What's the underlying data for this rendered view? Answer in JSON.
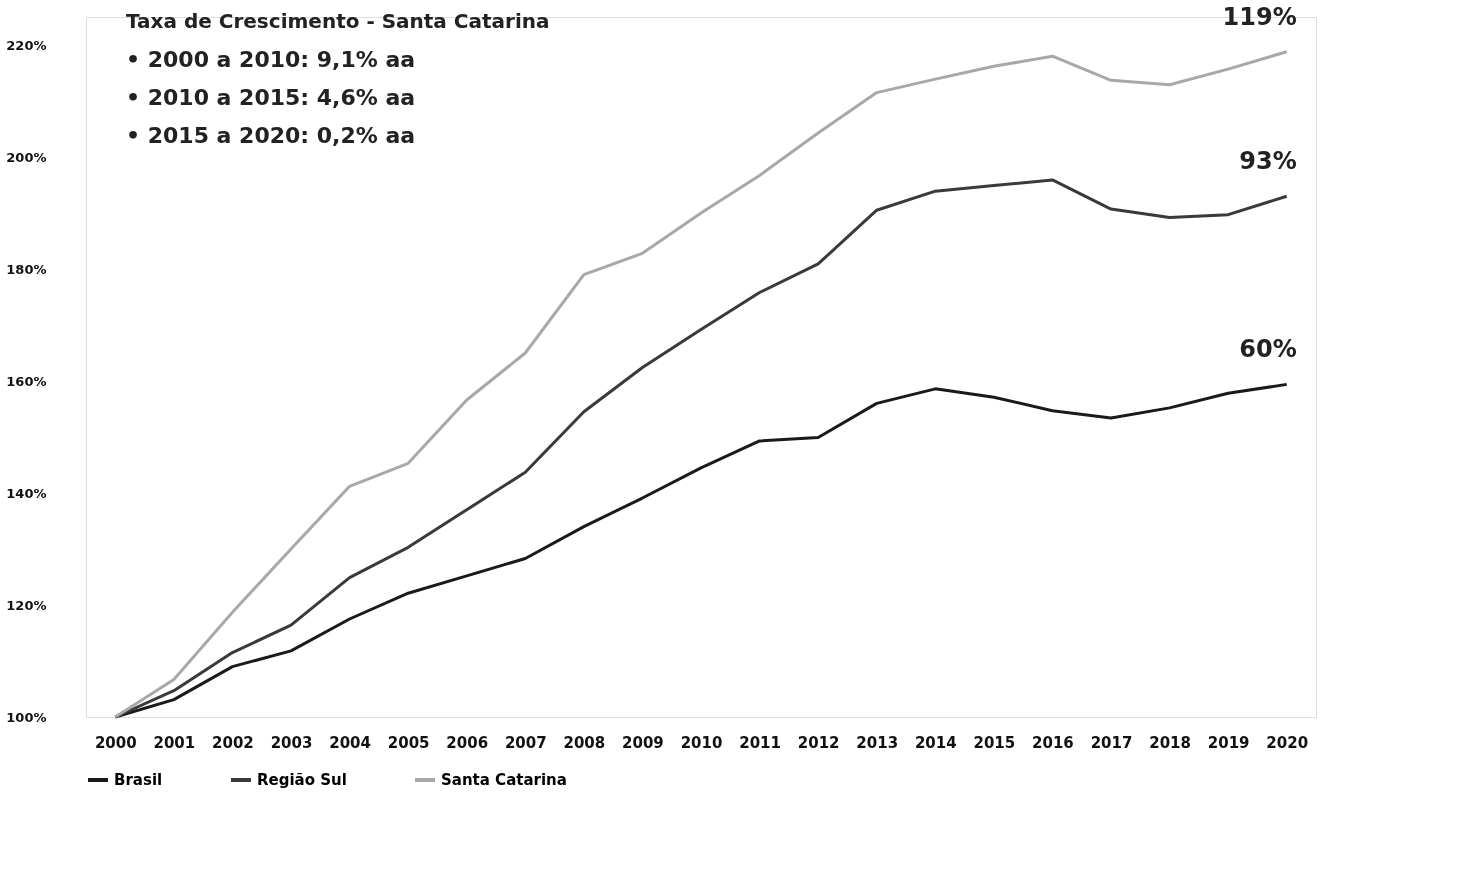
{
  "chart_data": {
    "type": "line",
    "categories": [
      "2000",
      "2001",
      "2002",
      "2003",
      "2004",
      "2005",
      "2006",
      "2007",
      "2008",
      "2009",
      "2010",
      "2011",
      "2012",
      "2013",
      "2014",
      "2015",
      "2016",
      "2017",
      "2018",
      "2019",
      "2020"
    ],
    "series": [
      {
        "name": "Brasil",
        "color": "#1a1a1a",
        "values": [
          100,
          103.1,
          109,
          111.8,
          117.5,
          122.1,
          125.2,
          128.3,
          134,
          139.1,
          144.5,
          149.3,
          149.9,
          156,
          158.6,
          157.1,
          154.7,
          153.4,
          155.2,
          157.8,
          159.4
        ]
      },
      {
        "name": "Região Sul",
        "color": "#3a3a3a",
        "values": [
          100,
          104.7,
          111.5,
          116.4,
          124.9,
          130.3,
          137,
          143.7,
          154.5,
          162.4,
          169.2,
          175.8,
          180.9,
          190.5,
          193.9,
          194.9,
          195.9,
          190.7,
          189.2,
          189.7,
          193
        ]
      },
      {
        "name": "Santa Catarina",
        "color": "#a8a8a8",
        "values": [
          100,
          106.7,
          118.7,
          130,
          141.2,
          145.3,
          156.6,
          165,
          179,
          182.8,
          190,
          196.7,
          204.3,
          211.5,
          213.9,
          216.2,
          218,
          213.7,
          212.9,
          215.7,
          218.8
        ]
      }
    ],
    "ylim": [
      100,
      225
    ],
    "yticks": [
      {
        "value": 100,
        "label": "100%"
      },
      {
        "value": 120,
        "label": "120%"
      },
      {
        "value": 140,
        "label": "140%"
      },
      {
        "value": 160,
        "label": "160%"
      },
      {
        "value": 180,
        "label": "180%"
      },
      {
        "value": 200,
        "label": "200%"
      },
      {
        "value": 220,
        "label": "220%"
      }
    ],
    "grid": false,
    "legend": "bottom",
    "marker": "none",
    "line_style": "solid",
    "annotations": [
      "Taxa de Crescimento  - Santa Catarina",
      "•   2000 a 2010: 9,1% aa",
      "•   2010 a 2015: 4,6% aa",
      "•   2015 a 2020: 0,2% aa",
      {
        "text": "119%",
        "x": "2020",
        "y": 218.8
      },
      {
        "text": "93%",
        "x": "2020",
        "y": 193
      },
      {
        "text": "60%",
        "x": "2020",
        "y": 159.4
      }
    ]
  }
}
